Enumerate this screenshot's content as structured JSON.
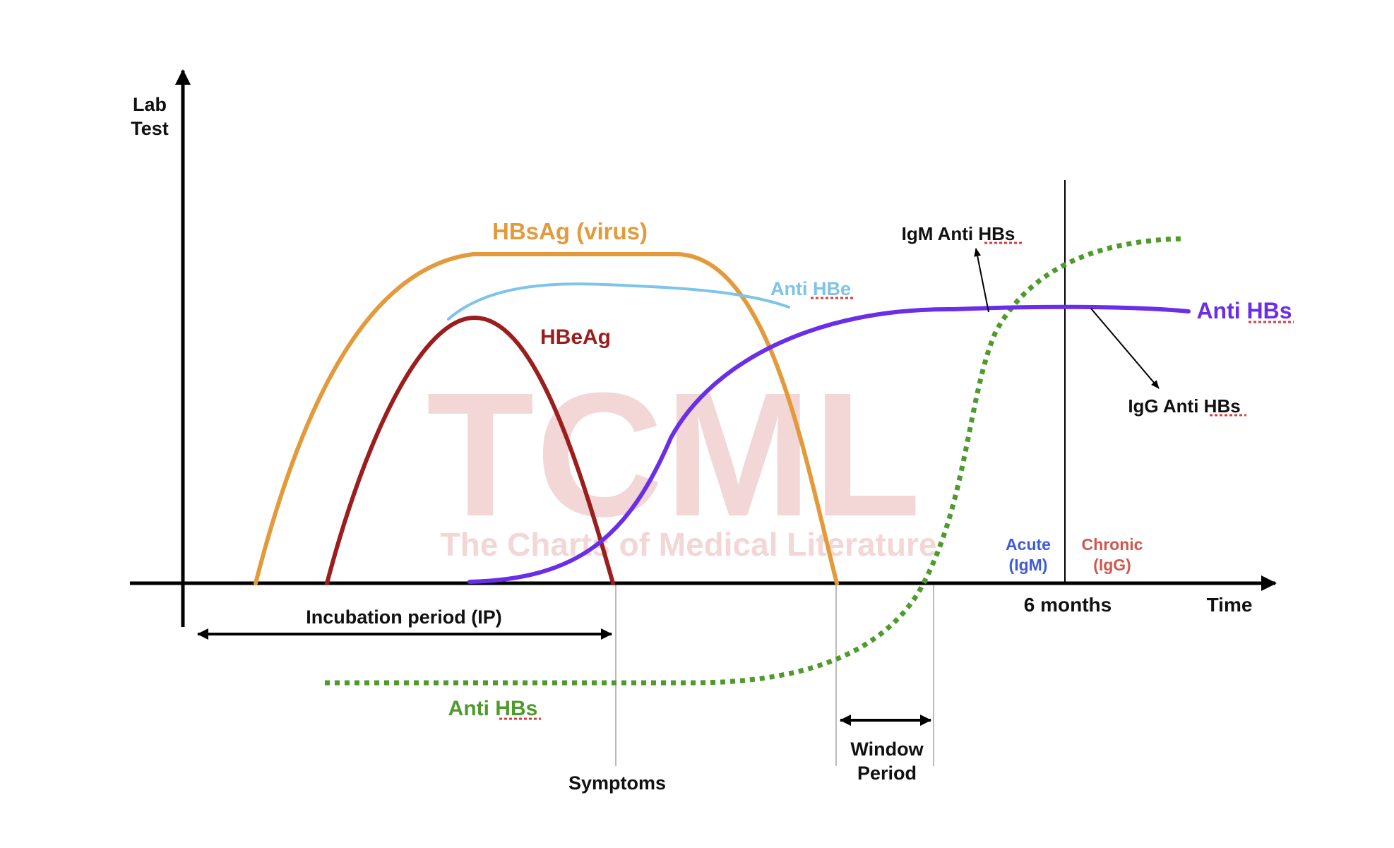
{
  "axes": {
    "y_label_line1": "Lab",
    "y_label_line2": "Test",
    "x_label": "Time"
  },
  "curves": {
    "hbsag_label": "HBsAg (virus)",
    "hbeag_label": "HBeAg",
    "anti_hbe_label": "Anti HBe",
    "anti_hbs_purple_label": "Anti HBs",
    "anti_hbs_green_label": "Anti HBs",
    "igm_label": "IgM Anti HBs",
    "igg_label": "IgG Anti HBs"
  },
  "markers": {
    "six_months": "6 months",
    "acute_line1": "Acute",
    "acute_line2": "(IgM)",
    "chronic_line1": "Chronic",
    "chronic_line2": "(IgG)",
    "incubation": "Incubation period (IP)",
    "symptoms": "Symptoms",
    "window_line1": "Window",
    "window_line2": "Period"
  },
  "watermark": {
    "logo": "TCML",
    "tagline": "The Charts of Medical Literature"
  },
  "colors": {
    "hbsag": "#E39A3B",
    "hbeag": "#9B1D1D",
    "anti_hbe": "#7EC3E8",
    "anti_hbs_purple": "#6A2EE8",
    "anti_hbs_green": "#4E9A2C",
    "acute": "#3D5BD9",
    "chronic": "#D0574E",
    "watermark": "#F3D6D6",
    "spellcheck": "#E0393B"
  }
}
